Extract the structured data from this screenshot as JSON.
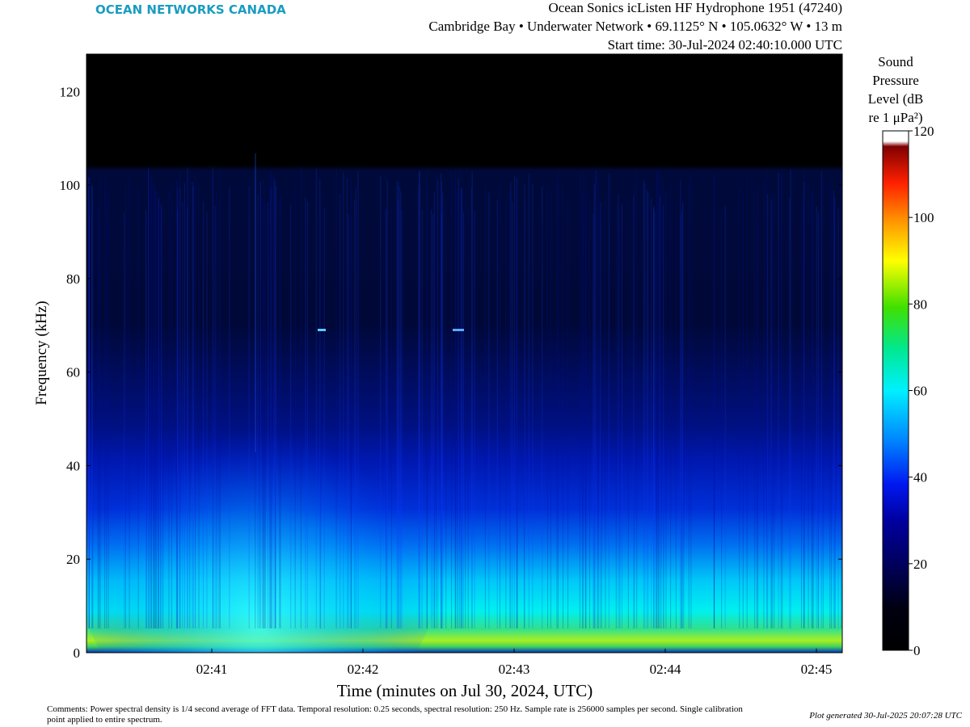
{
  "chart_data": {
    "type": "spectrogram",
    "brand": "OCEAN NETWORKS CANADA",
    "title": "Ocean Sonics icListen HF Hydrophone 1951 (47240)",
    "subtitle": "Cambridge Bay • Underwater Network • 69.1125° N • 105.0632° W • 13 m",
    "start_time": "Start time: 30-Jul-2024 02:40:10.000 UTC",
    "xlabel": "Time (minutes on Jul 30, 2024, UTC)",
    "ylabel": "Frequency (kHz)",
    "xticks": [
      "02:41",
      "02:42",
      "02:43",
      "02:44",
      "02:45"
    ],
    "ylim": [
      0,
      128
    ],
    "yticks": [
      0,
      20,
      40,
      60,
      80,
      100,
      120
    ],
    "colorbar_label": [
      "Sound",
      "Pressure",
      "Level (dB",
      "re 1 μPa²)"
    ],
    "zlim": [
      0,
      120
    ],
    "zticks": [
      0,
      20,
      40,
      60,
      80,
      100,
      120
    ],
    "comments": "Comments: Power spectral density is 1/4 second average of FFT data. Temporal resolution: 0.25 seconds, spectral resolution: 250 Hz. Sample rate is 256000 samples per second. Single calibration point applied to entire spectrum.",
    "generated": "Plot generated 30-Jul-2025 20:07:28 UTC"
  }
}
